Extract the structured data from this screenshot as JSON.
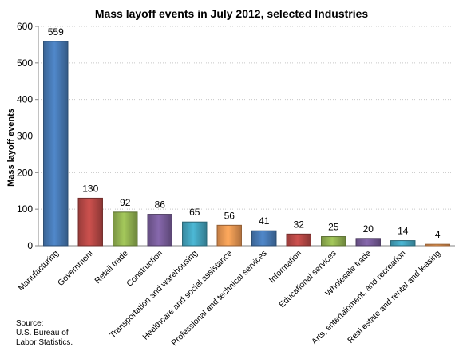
{
  "chart_data": {
    "type": "bar",
    "title": "Mass layoff events in July 2012, selected Industries",
    "ylabel": "Mass layoff events",
    "xlabel": "",
    "ylim": [
      0,
      600
    ],
    "yticks": [
      0,
      100,
      200,
      300,
      400,
      500,
      600
    ],
    "grid": true,
    "categories": [
      "Manufacturing",
      "Government",
      "Retail trade",
      "Construction",
      "Transportation and warehousing",
      "Healthcare and social assistance",
      "Professional and technical services",
      "Information",
      "Educational services",
      "Wholesale trade",
      "Arts, entertainment, and recreation",
      "Real estate and rental and leasing"
    ],
    "values": [
      559,
      130,
      92,
      86,
      65,
      56,
      41,
      32,
      25,
      20,
      14,
      4
    ],
    "colors": [
      "#4a7ebb",
      "#be4b48",
      "#98b954",
      "#7d60a0",
      "#46aac5",
      "#f59d56",
      "#4a7ebb",
      "#be4b48",
      "#98b954",
      "#7d60a0",
      "#46aac5",
      "#f59d56"
    ]
  },
  "source": {
    "lines": [
      "Source:",
      "U.S. Bureau of",
      "Labor Statistics."
    ]
  }
}
